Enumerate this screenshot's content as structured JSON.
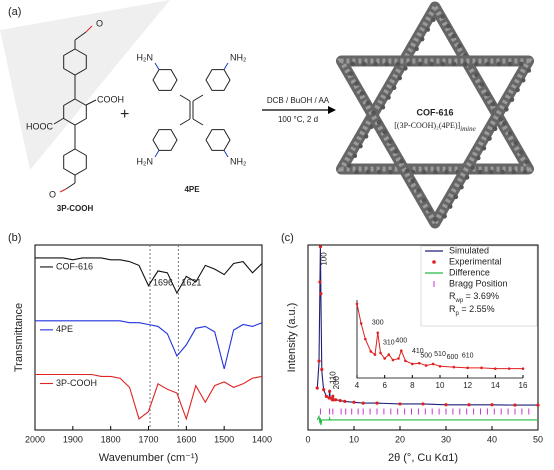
{
  "panel_a": {
    "label": "(a)",
    "reactant_1": {
      "name": "3P-COOH",
      "atoms": [
        "O",
        "COOH",
        "HOOC",
        "O"
      ]
    },
    "plus": "+",
    "reactant_2": {
      "name": "4PE",
      "atoms": [
        "H₂N",
        "NH₂",
        "H₂N",
        "NH₂"
      ]
    },
    "conditions": [
      "DCB / BuOH / AA",
      "100 °C, 2 d"
    ],
    "product": {
      "name": "COF-616",
      "formula": "[(3P-COOH)₂(4PE)]",
      "formula_sub": "imine"
    }
  },
  "chart_data": [
    {
      "type": "line",
      "panel": "(b)",
      "x_label": "Wavenumber (cm⁻¹)",
      "y_label": "Transmittance",
      "xlim": [
        2000,
        1400
      ],
      "xticks": [
        2000,
        1900,
        1800,
        1700,
        1600,
        1500,
        1400
      ],
      "ylim": [
        0,
        10
      ],
      "x": [
        2000,
        1975,
        1950,
        1925,
        1900,
        1875,
        1850,
        1825,
        1800,
        1775,
        1750,
        1725,
        1700,
        1675,
        1650,
        1625,
        1600,
        1575,
        1550,
        1525,
        1500,
        1475,
        1450,
        1425,
        1400
      ],
      "series": [
        {
          "name": "COF-616",
          "color": "#111111",
          "values": [
            9.3,
            9.3,
            9.3,
            9.3,
            9.2,
            9.3,
            9.3,
            9.3,
            9.2,
            9.2,
            9.1,
            8.9,
            7.8,
            8.6,
            8.5,
            7.4,
            8.3,
            8.0,
            8.9,
            8.7,
            8.4,
            9.0,
            9.1,
            8.5,
            9.0
          ]
        },
        {
          "name": "4PE",
          "color": "#2233dd",
          "values": [
            5.9,
            5.9,
            5.9,
            5.9,
            5.9,
            5.9,
            5.9,
            5.9,
            5.9,
            5.9,
            5.8,
            5.8,
            5.7,
            5.6,
            5.2,
            4.0,
            4.6,
            5.5,
            5.6,
            5.3,
            3.3,
            5.4,
            5.7,
            5.6,
            5.8
          ]
        },
        {
          "name": "3P-COOH",
          "color": "#e02222",
          "values": [
            3.0,
            3.0,
            3.0,
            3.0,
            3.0,
            3.0,
            3.0,
            2.9,
            2.9,
            2.8,
            2.3,
            0.6,
            1.0,
            2.5,
            2.2,
            2.0,
            0.6,
            2.4,
            1.5,
            2.4,
            2.6,
            2.3,
            2.5,
            2.8,
            2.9
          ]
        }
      ],
      "vlines": [
        1696,
        1621
      ]
    },
    {
      "type": "line",
      "panel": "(c)",
      "x_label": "2θ (°, Cu Kα1)",
      "y_label": "Intensity (a.u.)",
      "xlim": [
        0,
        50
      ],
      "xticks": [
        0,
        10,
        20,
        30,
        40,
        50
      ],
      "ylim": [
        -10,
        100
      ],
      "x": [
        2,
        2.4,
        2.6,
        2.7,
        2.8,
        3.0,
        3.4,
        4.0,
        4.6,
        4.7,
        4.8,
        5.3,
        5.4,
        5.5,
        6,
        7,
        8,
        10,
        12,
        15,
        20,
        25,
        30,
        35,
        40,
        45,
        50
      ],
      "series": [
        {
          "name": "Simulated",
          "color": "#1f1f7a",
          "marker": "line",
          "values": [
            14,
            30,
            80,
            100,
            70,
            25,
            14,
            10,
            9,
            14,
            9,
            8,
            11,
            8,
            8,
            7.5,
            7,
            6.5,
            6,
            6,
            5.5,
            5.5,
            5,
            5,
            5,
            4.8,
            4.8
          ]
        },
        {
          "name": "Experimental",
          "color": "#e02020",
          "marker": "dots",
          "values": [
            15,
            31,
            78,
            99,
            71,
            26,
            14,
            10,
            9,
            13,
            9,
            8,
            10,
            8,
            8,
            7.5,
            7,
            6.5,
            6,
            6,
            5.5,
            5.5,
            5,
            5,
            5,
            4.8,
            4.8
          ]
        },
        {
          "name": "Difference",
          "color": "#22bb44",
          "marker": "line",
          "values": [
            -4,
            -2,
            -6,
            -3,
            -7,
            -4,
            -4,
            -4,
            -4,
            -3,
            -4,
            -4,
            -4,
            -4,
            -4,
            -4,
            -4,
            -4,
            -4,
            -4,
            -4,
            -4,
            -4,
            -4,
            -4,
            -4,
            -4
          ]
        }
      ],
      "bragg": {
        "name": "Bragg Position",
        "color": "#cc33cc",
        "positions": [
          2.7,
          4.7,
          5.4,
          7.2,
          8.2,
          9.5,
          10.9,
          12.0,
          13.5,
          15,
          16.5,
          18,
          19.5,
          21,
          22.5,
          24,
          25.5,
          27,
          28.5,
          30,
          31.5,
          33,
          34.5,
          36,
          37.5,
          39,
          40.5,
          42,
          43.5,
          45,
          46.5,
          48
        ]
      },
      "peak_labels": [
        {
          "text": "100",
          "x": 2.7
        },
        {
          "text": "110",
          "x": 4.7
        },
        {
          "text": "200",
          "x": 5.4
        }
      ],
      "stats": [
        {
          "main": "R",
          "sub": "wp",
          "rest": " = 3.69%"
        },
        {
          "main": "R",
          "sub": "p",
          "rest": " = 2.55%"
        }
      ],
      "inset": {
        "xlim": [
          4,
          16
        ],
        "xticks": [
          4,
          6,
          8,
          10,
          12,
          14,
          16
        ],
        "ylim": [
          0,
          10
        ],
        "color": "#e02020",
        "x": [
          4,
          4.3,
          4.6,
          5,
          5.3,
          5.5,
          5.7,
          6,
          6.3,
          6.6,
          7,
          7.2,
          7.5,
          8,
          8.5,
          9,
          9.5,
          10,
          11,
          12,
          13,
          14,
          15,
          16
        ],
        "values": [
          9.5,
          7,
          5,
          3.4,
          3.0,
          5.8,
          3.2,
          2.5,
          3.0,
          2.3,
          2.5,
          3.5,
          2.2,
          1.8,
          1.9,
          1.6,
          1.8,
          1.5,
          1.4,
          1.3,
          1.3,
          1.2,
          1.2,
          1.2
        ],
        "peak_labels": [
          {
            "text": "300",
            "x": 5.5
          },
          {
            "text": "310",
            "x": 6.3
          },
          {
            "text": "400",
            "x": 7.2
          },
          {
            "text": "410",
            "x": 8.4
          },
          {
            "text": "500",
            "x": 9.0
          },
          {
            "text": "510",
            "x": 10.0
          },
          {
            "text": "600",
            "x": 10.9
          },
          {
            "text": "610",
            "x": 12.0
          }
        ]
      }
    }
  ]
}
